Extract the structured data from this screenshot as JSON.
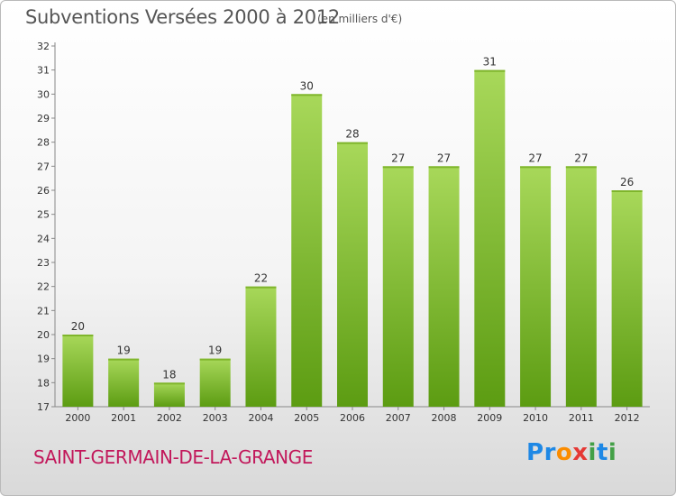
{
  "header": {
    "title": "Subventions Versées 2000 à 2012",
    "unit": "(en milliers d'€)"
  },
  "footer": {
    "commune": "SAINT-GERMAIN-DE-LA-GRANGE",
    "logo_text": "Proxiti",
    "logo_letters": [
      {
        "char": "P",
        "color": "#1e88e5"
      },
      {
        "char": "r",
        "color": "#1e88e5"
      },
      {
        "char": "o",
        "color": "#fb8c00"
      },
      {
        "char": "x",
        "color": "#e53935"
      },
      {
        "char": "i",
        "color": "#43a047"
      },
      {
        "char": "t",
        "color": "#1e88e5"
      },
      {
        "char": "i",
        "color": "#43a047"
      }
    ]
  },
  "colors": {
    "bar_light": "#a8d85a",
    "bar_dark": "#5c9c12",
    "title": "#555555",
    "commune": "#c2185b"
  },
  "chart_data": {
    "type": "bar",
    "title": "Subventions Versées 2000 à 2012",
    "unit": "(en milliers d'€)",
    "categories": [
      "2000",
      "2001",
      "2002",
      "2003",
      "2004",
      "2005",
      "2006",
      "2007",
      "2008",
      "2009",
      "2010",
      "2011",
      "2012"
    ],
    "values": [
      20,
      19,
      18,
      19,
      22,
      30,
      28,
      27,
      27,
      31,
      27,
      27,
      26
    ],
    "ylim": [
      17,
      32
    ],
    "yticks": [
      17,
      18,
      19,
      20,
      21,
      22,
      23,
      24,
      25,
      26,
      27,
      28,
      29,
      30,
      31,
      32
    ],
    "grid": false,
    "data_labels": true
  }
}
